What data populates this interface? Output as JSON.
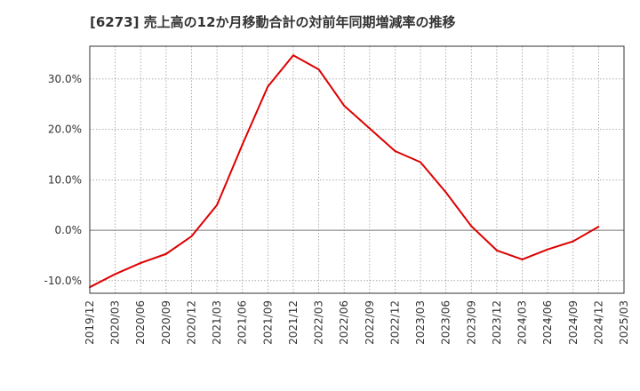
{
  "chart_data": {
    "type": "line",
    "title": "[6273]  売上高の12か月移動合計の対前年同期増減率の推移",
    "xlabel": "",
    "ylabel": "",
    "categories": [
      "2019/12",
      "2020/03",
      "2020/06",
      "2020/09",
      "2020/12",
      "2021/03",
      "2021/06",
      "2021/09",
      "2021/12",
      "2022/03",
      "2022/06",
      "2022/09",
      "2022/12",
      "2023/03",
      "2023/06",
      "2023/09",
      "2023/12",
      "2024/03",
      "2024/06",
      "2024/09",
      "2024/12",
      "2025/03"
    ],
    "y_ticks": [
      -10,
      0,
      10,
      20,
      30
    ],
    "y_tick_labels": [
      "-10.0%",
      "0.0%",
      "10.0%",
      "20.0%",
      "30.0%"
    ],
    "ylim": [
      -12.5,
      36.5
    ],
    "grid": true,
    "series": [
      {
        "color": "#dd0000",
        "values": [
          -11.3,
          -8.7,
          -6.5,
          -4.7,
          -1.2,
          5.0,
          17.0,
          28.5,
          34.7,
          31.9,
          24.7,
          20.2,
          15.7,
          13.5,
          7.5,
          0.8,
          -4.0,
          -5.8,
          -3.8,
          -2.2,
          0.7,
          null
        ]
      }
    ],
    "colors": {
      "line": "#dd0000",
      "grid": "#999999",
      "axis": "#333333",
      "zero_line": "#777777"
    }
  }
}
